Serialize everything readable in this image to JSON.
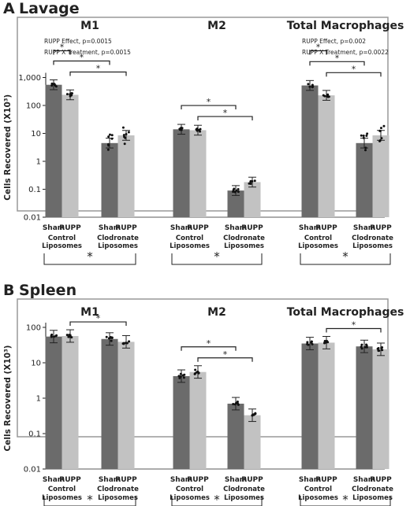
{
  "panels": [
    {
      "letter": "A",
      "title": "Lavage",
      "ylabel": "Cells Recovered (X10³)",
      "stats": [
        {
          "group": 0,
          "lines": [
            "RUPP Effect, p=0.0015",
            "RUPP X Treatment, p=0.0015"
          ]
        },
        {
          "group": 2,
          "lines": [
            "RUPP Effect, p=0.002",
            "RUPP X Treatment, p=0.0022"
          ]
        }
      ]
    },
    {
      "letter": "B",
      "title": "Spleen",
      "ylabel": "Cells Recovered (X10³)",
      "stats": []
    }
  ],
  "group_titles": [
    "M1",
    "M2",
    "Total Macrophages"
  ],
  "bar_labels": [
    "Sham",
    "RUPP",
    "Sham",
    "RUPP"
  ],
  "treatment_labels": [
    [
      "Control",
      "Liposomes"
    ],
    [
      "Clodronate",
      "Liposomes"
    ]
  ],
  "significance_marker": "*",
  "colors": {
    "sham": "#6b6b6b",
    "rupp": "#c2c2c2",
    "frame": "#999999",
    "ink": "#222222"
  },
  "chart_data": [
    {
      "type": "bar",
      "title": "Lavage",
      "ylabel": "Cells Recovered (X10³)",
      "yscale": "log",
      "ylim": [
        0.01,
        1000
      ],
      "yticks": [
        "0.01",
        "0.1",
        "1",
        "10",
        "100",
        "1,000"
      ],
      "groups": [
        {
          "name": "M1",
          "categories": [
            "Sham",
            "RUPP",
            "Sham",
            "RUPP"
          ],
          "treatments": [
            "Control Liposomes",
            "Control Liposomes",
            "Clodronate Liposomes",
            "Clodronate Liposomes"
          ],
          "values": [
            550,
            240,
            4.5,
            8.5
          ],
          "sig_brackets": [
            [
              0,
              1
            ],
            [
              0,
              2
            ],
            [
              1,
              3
            ]
          ]
        },
        {
          "name": "M2",
          "categories": [
            "Sham",
            "RUPP",
            "Sham",
            "RUPP"
          ],
          "treatments": [
            "Control Liposomes",
            "Control Liposomes",
            "Clodronate Liposomes",
            "Clodronate Liposomes"
          ],
          "values": [
            14,
            13,
            0.09,
            0.18
          ],
          "sig_brackets": [
            [
              0,
              2
            ],
            [
              1,
              3
            ]
          ]
        },
        {
          "name": "Total Macrophages",
          "categories": [
            "Sham",
            "RUPP",
            "Sham",
            "RUPP"
          ],
          "treatments": [
            "Control Liposomes",
            "Control Liposomes",
            "Clodronate Liposomes",
            "Clodronate Liposomes"
          ],
          "values": [
            520,
            230,
            4.5,
            8.5
          ],
          "sig_brackets": [
            [
              0,
              1
            ],
            [
              0,
              2
            ],
            [
              1,
              3
            ]
          ]
        }
      ]
    },
    {
      "type": "bar",
      "title": "Spleen",
      "ylabel": "Cells Recovered (X10³)",
      "yscale": "log",
      "ylim": [
        0.01,
        100
      ],
      "yticks": [
        "0.01",
        "0.1",
        "1",
        "10",
        "100"
      ],
      "groups": [
        {
          "name": "M1",
          "categories": [
            "Sham",
            "RUPP",
            "Sham",
            "RUPP"
          ],
          "treatments": [
            "Control Liposomes",
            "Control Liposomes",
            "Clodronate Liposomes",
            "Clodronate Liposomes"
          ],
          "values": [
            55,
            57,
            47,
            39
          ],
          "sig_brackets": [
            [
              1,
              3
            ]
          ]
        },
        {
          "name": "M2",
          "categories": [
            "Sham",
            "RUPP",
            "Sham",
            "RUPP"
          ],
          "treatments": [
            "Control Liposomes",
            "Control Liposomes",
            "Clodronate Liposomes",
            "Clodronate Liposomes"
          ],
          "values": [
            4.2,
            5.5,
            0.7,
            0.33
          ],
          "sig_brackets": [
            [
              0,
              2
            ],
            [
              1,
              3
            ]
          ]
        },
        {
          "name": "Total Macrophages",
          "categories": [
            "Sham",
            "RUPP",
            "Sham",
            "RUPP"
          ],
          "treatments": [
            "Control Liposomes",
            "Control Liposomes",
            "Clodronate Liposomes",
            "Clodronate Liposomes"
          ],
          "values": [
            35,
            37,
            29,
            24
          ],
          "sig_brackets": [
            [
              1,
              3
            ]
          ]
        }
      ]
    }
  ]
}
